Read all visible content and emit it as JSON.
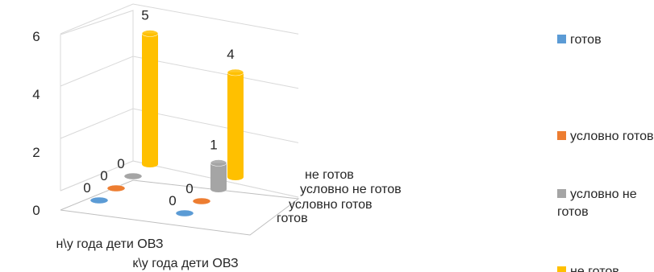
{
  "chart_data": {
    "type": "bar",
    "title": "",
    "categories": [
      "н\\у года дети ОВЗ",
      "к\\у года  дети ОВЗ"
    ],
    "series": [
      {
        "name": "готов",
        "values": [
          0,
          0
        ],
        "color": "#5B9BD5"
      },
      {
        "name": "условно готов",
        "values": [
          0,
          0
        ],
        "color": "#ED7D31"
      },
      {
        "name": "условно не готов",
        "values": [
          0,
          1
        ],
        "color": "#A5A5A5"
      },
      {
        "name": "не готов",
        "values": [
          5,
          4
        ],
        "color": "#FFC000"
      }
    ],
    "y_ticks": [
      "0",
      "2",
      "4",
      "6"
    ],
    "ylim": [
      0,
      6
    ],
    "series_axis_labels": [
      "не готов",
      "условно не готов",
      "условно готов",
      "готов"
    ],
    "legend": {
      "position": "right"
    },
    "grid": true,
    "style": "3d-cylinder"
  }
}
